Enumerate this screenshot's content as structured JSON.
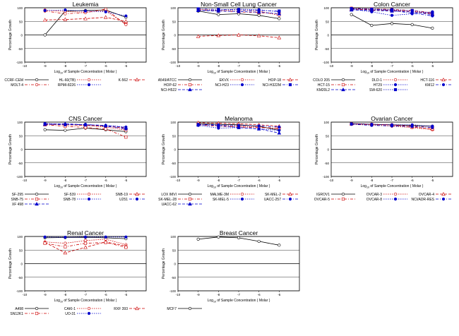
{
  "figure": {
    "y_label": "Percentage Growth",
    "x_label_prefix": "Log",
    "x_label_sub": "10",
    "x_label_suffix": " of Sample Concentration ( Molar )"
  },
  "chart_data": [
    {
      "type": "line",
      "title": "Leukemia",
      "x": [
        -9,
        -8,
        -7,
        -6,
        -5
      ],
      "xlim": [
        -10,
        -4
      ],
      "ylim": [
        -100,
        100
      ],
      "xticks": [
        -10,
        -9,
        -8,
        -7,
        -6,
        -5
      ],
      "yticks": [
        -100,
        -50,
        0,
        50,
        100
      ],
      "grid": true,
      "series": [
        {
          "name": "CCRF-CEM",
          "values": [
            0,
            88,
            90,
            92,
            65
          ],
          "color": "#000000",
          "marker": "circle",
          "dash": "solid"
        },
        {
          "name": "HL-60(TB)",
          "values": [
            92,
            86,
            84,
            88,
            40
          ],
          "color": "#cc0000",
          "marker": "circle",
          "dash": "dot"
        },
        {
          "name": "K-562",
          "values": [
            55,
            57,
            60,
            65,
            50
          ],
          "color": "#cc0000",
          "marker": "triangle",
          "dash": "dash"
        },
        {
          "name": "MOLT-4",
          "values": [
            88,
            78,
            82,
            95,
            38
          ],
          "color": "#cc0000",
          "marker": "circle",
          "dash": "dashdot"
        },
        {
          "name": "RPMI-8226",
          "values": [
            90,
            92,
            88,
            85,
            70
          ],
          "color": "#0000cc",
          "marker": "circle",
          "dash": "dot"
        }
      ]
    },
    {
      "type": "line",
      "title": "Non-Small Cell Lung Cancer",
      "x": [
        -9,
        -8,
        -7,
        -6,
        -5
      ],
      "xlim": [
        -10,
        -4
      ],
      "ylim": [
        -100,
        100
      ],
      "xticks": [
        -10,
        -9,
        -8,
        -7,
        -6,
        -5
      ],
      "yticks": [
        -100,
        -50,
        0,
        50,
        100
      ],
      "grid": true,
      "series": [
        {
          "name": "A549/ATCC",
          "values": [
            88,
            75,
            78,
            72,
            60
          ],
          "color": "#000000",
          "marker": "circle",
          "dash": "solid"
        },
        {
          "name": "EKVX",
          "values": [
            95,
            90,
            92,
            88,
            72
          ],
          "color": "#cc0000",
          "marker": "circle",
          "dash": "dot"
        },
        {
          "name": "HOP-18",
          "values": [
            -5,
            -2,
            0,
            -3,
            -10
          ],
          "color": "#cc0000",
          "marker": "triangle",
          "dash": "dash"
        },
        {
          "name": "HOP-62",
          "values": [
            92,
            88,
            85,
            82,
            78
          ],
          "color": "#cc0000",
          "marker": "square",
          "dash": "dashdot"
        },
        {
          "name": "NCI-H23",
          "values": [
            90,
            92,
            95,
            93,
            85
          ],
          "color": "#0000cc",
          "marker": "circle",
          "dash": "dot"
        },
        {
          "name": "NCI-H322M",
          "values": [
            96,
            94,
            92,
            90,
            88
          ],
          "color": "#0000cc",
          "marker": "square",
          "dash": "dashdot"
        },
        {
          "name": "NCI-H522",
          "values": [
            90,
            88,
            86,
            84,
            78
          ],
          "color": "#0000cc",
          "marker": "triangle",
          "dash": "dash"
        }
      ]
    },
    {
      "type": "line",
      "title": "Colon Cancer",
      "x": [
        -9,
        -8,
        -7,
        -6,
        -5
      ],
      "xlim": [
        -10,
        -4
      ],
      "ylim": [
        -100,
        100
      ],
      "xticks": [
        -10,
        -9,
        -8,
        -7,
        -6,
        -5
      ],
      "yticks": [
        -100,
        -50,
        0,
        50,
        100
      ],
      "grid": true,
      "series": [
        {
          "name": "COLO 205",
          "values": [
            75,
            35,
            42,
            38,
            25
          ],
          "color": "#000000",
          "marker": "circle",
          "dash": "solid"
        },
        {
          "name": "DLD-1",
          "values": [
            98,
            95,
            92,
            88,
            80
          ],
          "color": "#cc0000",
          "marker": "circle",
          "dash": "dot"
        },
        {
          "name": "HCT-116",
          "values": [
            95,
            92,
            90,
            85,
            78
          ],
          "color": "#cc0000",
          "marker": "triangle",
          "dash": "dash"
        },
        {
          "name": "HCT-15",
          "values": [
            98,
            96,
            94,
            90,
            82
          ],
          "color": "#cc0000",
          "marker": "square",
          "dash": "dashdot"
        },
        {
          "name": "HT29",
          "values": [
            95,
            85,
            72,
            78,
            85
          ],
          "color": "#0000cc",
          "marker": "circle",
          "dash": "dot"
        },
        {
          "name": "KM12",
          "values": [
            96,
            94,
            90,
            80,
            70
          ],
          "color": "#0000cc",
          "marker": "circle",
          "dash": "dashdot"
        },
        {
          "name": "KM20L2",
          "values": [
            92,
            90,
            88,
            85,
            75
          ],
          "color": "#0000cc",
          "marker": "triangle",
          "dash": "dash"
        },
        {
          "name": "SW-620",
          "values": [
            97,
            95,
            93,
            90,
            80
          ],
          "color": "#0000cc",
          "marker": "square",
          "dash": "dot"
        }
      ]
    },
    {
      "type": "line",
      "title": "CNS Cancer",
      "x": [
        -9,
        -8,
        -7,
        -6,
        -5
      ],
      "xlim": [
        -10,
        -4
      ],
      "ylim": [
        -100,
        100
      ],
      "xticks": [
        -10,
        -9,
        -8,
        -7,
        -6,
        -5
      ],
      "yticks": [
        -100,
        -50,
        0,
        50,
        100
      ],
      "grid": true,
      "series": [
        {
          "name": "SF-295",
          "values": [
            72,
            70,
            78,
            72,
            65
          ],
          "color": "#000000",
          "marker": "circle",
          "dash": "solid"
        },
        {
          "name": "SF-539",
          "values": [
            95,
            92,
            88,
            82,
            70
          ],
          "color": "#cc0000",
          "marker": "circle",
          "dash": "dot"
        },
        {
          "name": "SNB-19",
          "values": [
            92,
            90,
            88,
            85,
            78
          ],
          "color": "#cc0000",
          "marker": "triangle",
          "dash": "dash"
        },
        {
          "name": "SNB-75",
          "values": [
            90,
            85,
            80,
            75,
            45
          ],
          "color": "#cc0000",
          "marker": "square",
          "dash": "dashdot"
        },
        {
          "name": "SNB-78",
          "values": [
            95,
            92,
            90,
            88,
            82
          ],
          "color": "#0000cc",
          "marker": "circle",
          "dash": "dot"
        },
        {
          "name": "U251",
          "values": [
            93,
            90,
            92,
            85,
            75
          ],
          "color": "#0000cc",
          "marker": "circle",
          "dash": "dashdot"
        },
        {
          "name": "XF 498",
          "values": [
            92,
            94,
            90,
            88,
            80
          ],
          "color": "#0000cc",
          "marker": "triangle",
          "dash": "dash"
        }
      ]
    },
    {
      "type": "line",
      "title": "Melanoma",
      "x": [
        -9,
        -8,
        -7,
        -6,
        -5
      ],
      "xlim": [
        -10,
        -4
      ],
      "ylim": [
        -100,
        100
      ],
      "xticks": [
        -10,
        -9,
        -8,
        -7,
        -6,
        -5
      ],
      "yticks": [
        -100,
        -50,
        0,
        50,
        100
      ],
      "grid": true,
      "series": [
        {
          "name": "LOX IMVI",
          "values": [
            95,
            92,
            90,
            85,
            70
          ],
          "color": "#000000",
          "marker": "circle",
          "dash": "solid"
        },
        {
          "name": "MALME-3M",
          "values": [
            92,
            88,
            85,
            82,
            75
          ],
          "color": "#cc0000",
          "marker": "circle",
          "dash": "dot"
        },
        {
          "name": "SK-MEL-2",
          "values": [
            98,
            96,
            94,
            90,
            85
          ],
          "color": "#cc0000",
          "marker": "triangle",
          "dash": "dash"
        },
        {
          "name": "SK-MEL-28",
          "values": [
            90,
            85,
            82,
            80,
            78
          ],
          "color": "#cc0000",
          "marker": "square",
          "dash": "dashdot"
        },
        {
          "name": "SK-MEL-5",
          "values": [
            88,
            78,
            80,
            75,
            70
          ],
          "color": "#0000cc",
          "marker": "circle",
          "dash": "dot"
        },
        {
          "name": "UACC-257",
          "values": [
            92,
            90,
            88,
            86,
            82
          ],
          "color": "#0000cc",
          "marker": "circle",
          "dash": "dashdot"
        },
        {
          "name": "UACC-62",
          "values": [
            90,
            88,
            80,
            75,
            60
          ],
          "color": "#0000cc",
          "marker": "triangle",
          "dash": "dash"
        }
      ]
    },
    {
      "type": "line",
      "title": "Ovarian Cancer",
      "x": [
        -9,
        -8,
        -7,
        -6,
        -5
      ],
      "xlim": [
        -10,
        -4
      ],
      "ylim": [
        -100,
        100
      ],
      "xticks": [
        -10,
        -9,
        -8,
        -7,
        -6,
        -5
      ],
      "yticks": [
        -100,
        -50,
        0,
        50,
        100
      ],
      "grid": true,
      "series": [
        {
          "name": "IGROV1",
          "values": [
            95,
            92,
            90,
            88,
            85
          ],
          "color": "#000000",
          "marker": "circle",
          "dash": "solid"
        },
        {
          "name": "OVCAR-3",
          "values": [
            92,
            90,
            85,
            80,
            72
          ],
          "color": "#cc0000",
          "marker": "circle",
          "dash": "dot"
        },
        {
          "name": "OVCAR-4",
          "values": [
            94,
            92,
            90,
            82,
            75
          ],
          "color": "#cc0000",
          "marker": "triangle",
          "dash": "dash"
        },
        {
          "name": "OVCAR-5",
          "values": [
            93,
            91,
            89,
            86,
            80
          ],
          "color": "#cc0000",
          "marker": "square",
          "dash": "dashdot"
        },
        {
          "name": "OVCAR-8",
          "values": [
            94,
            92,
            90,
            90,
            85
          ],
          "color": "#0000cc",
          "marker": "circle",
          "dash": "dot"
        },
        {
          "name": "NCI/ADR-RES",
          "values": [
            92,
            88,
            86,
            84,
            80
          ],
          "color": "#0000cc",
          "marker": "circle",
          "dash": "dashdot"
        }
      ]
    },
    {
      "type": "line",
      "title": "Renal Cancer",
      "x": [
        -9,
        -8,
        -7,
        -6,
        -5
      ],
      "xlim": [
        -10,
        -4
      ],
      "ylim": [
        -100,
        100
      ],
      "xticks": [
        -10,
        -9,
        -8,
        -7,
        -6,
        -5
      ],
      "yticks": [
        -100,
        -50,
        0,
        50,
        100
      ],
      "grid": true,
      "series": [
        {
          "name": "A498",
          "values": [
            95,
            96,
            97,
            95,
            92
          ],
          "color": "#000000",
          "marker": "circle",
          "dash": "solid"
        },
        {
          "name": "CAKI-1",
          "values": [
            80,
            75,
            85,
            90,
            70
          ],
          "color": "#cc0000",
          "marker": "circle",
          "dash": "dot"
        },
        {
          "name": "RXF 393",
          "values": [
            78,
            40,
            60,
            80,
            65
          ],
          "color": "#cc0000",
          "marker": "triangle",
          "dash": "dash"
        },
        {
          "name": "SN12K1",
          "values": [
            75,
            62,
            75,
            78,
            60
          ],
          "color": "#cc0000",
          "marker": "square",
          "dash": "dashdot"
        },
        {
          "name": "UO-31",
          "values": [
            98,
            97,
            98,
            98,
            98
          ],
          "color": "#0000cc",
          "marker": "circle",
          "dash": "dot"
        }
      ]
    },
    {
      "type": "line",
      "title": "Breast Cancer",
      "x": [
        -9,
        -8,
        -7,
        -6,
        -5
      ],
      "xlim": [
        -10,
        -4
      ],
      "ylim": [
        -100,
        100
      ],
      "xticks": [
        -10,
        -9,
        -8,
        -7,
        -6,
        -5
      ],
      "yticks": [
        -100,
        -50,
        0,
        50,
        100
      ],
      "grid": true,
      "series": [
        {
          "name": "MCF7",
          "values": [
            90,
            98,
            95,
            82,
            68
          ],
          "color": "#000000",
          "marker": "circle",
          "dash": "solid"
        }
      ]
    }
  ]
}
